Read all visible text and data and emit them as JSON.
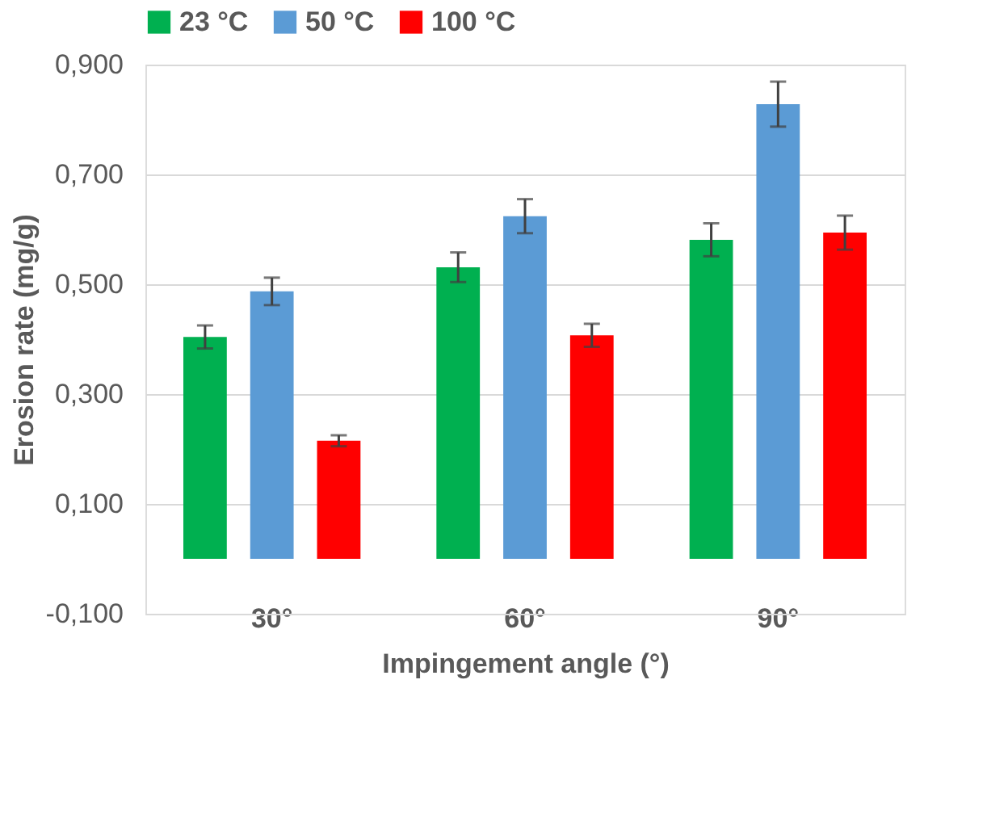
{
  "chart_data": {
    "type": "bar",
    "xlabel": "Impingement  angle (°)",
    "ylabel": "Erosion rate (mg/g)",
    "categories": [
      "30°",
      "60°",
      "90°"
    ],
    "series": [
      {
        "name": "23 °C",
        "color": "#00b050",
        "values": [
          0.404,
          0.531,
          0.581
        ],
        "errors": [
          0.021,
          0.027,
          0.03
        ]
      },
      {
        "name": "50 °C",
        "color": "#5b9bd5",
        "values": [
          0.487,
          0.624,
          0.828
        ],
        "errors": [
          0.025,
          0.031,
          0.041
        ]
      },
      {
        "name": "100 °C",
        "color": "#ff0000",
        "values": [
          0.215,
          0.407,
          0.594
        ],
        "errors": [
          0.01,
          0.021,
          0.031
        ]
      }
    ],
    "ylim": [
      -0.1,
      0.9
    ],
    "yticks": [
      {
        "value": -0.1,
        "label": "-0,100"
      },
      {
        "value": 0.1,
        "label": "0,100"
      },
      {
        "value": 0.3,
        "label": "0,300"
      },
      {
        "value": 0.5,
        "label": "0,500"
      },
      {
        "value": 0.7,
        "label": "0,700"
      },
      {
        "value": 0.9,
        "label": "0,900"
      }
    ],
    "grid": "y",
    "legend": "top"
  }
}
